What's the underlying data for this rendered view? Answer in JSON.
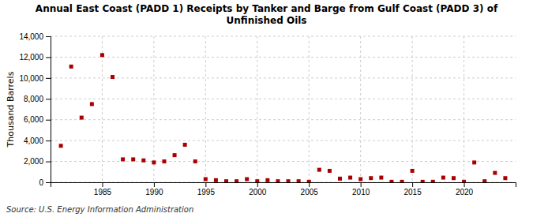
{
  "chart_data": {
    "type": "scatter",
    "title": "Annual East Coast (PADD 1) Receipts by Tanker and Barge from Gulf Coast (PADD 3) of\nUnfinished Oils",
    "ylabel": "Thousand Barrels",
    "source": "Source: U.S. Energy Information Administration",
    "color": "#aa0000",
    "marker": "square",
    "grid": true,
    "x": [
      1981,
      1982,
      1983,
      1984,
      1985,
      1986,
      1987,
      1988,
      1989,
      1990,
      1991,
      1992,
      1993,
      1994,
      1995,
      1996,
      1997,
      1998,
      1999,
      2000,
      2001,
      2002,
      2003,
      2004,
      2005,
      2006,
      2007,
      2008,
      2009,
      2010,
      2011,
      2012,
      2013,
      2014,
      2015,
      2016,
      2017,
      2018,
      2019,
      2020,
      2021,
      2022,
      2023,
      2024
    ],
    "values": [
      3500,
      11100,
      6200,
      7500,
      12200,
      10100,
      2200,
      2200,
      2100,
      1900,
      2000,
      2600,
      3600,
      2000,
      300,
      200,
      100,
      100,
      300,
      100,
      200,
      100,
      100,
      100,
      50,
      1200,
      1100,
      350,
      450,
      300,
      400,
      450,
      50,
      50,
      1100,
      50,
      50,
      450,
      400,
      50,
      1900,
      100,
      900,
      400
    ],
    "xlim": [
      1980,
      2025
    ],
    "xticks": [
      1985,
      1990,
      1995,
      2000,
      2005,
      2010,
      2015,
      2020
    ],
    "ylim": [
      0,
      14000
    ],
    "yticks": [
      0,
      {
        "value": 2000,
        "label": "2,000"
      },
      {
        "value": 4000,
        "label": "4,000"
      },
      {
        "value": 6000,
        "label": "6,000"
      },
      {
        "value": 8000,
        "label": "8,000"
      },
      {
        "value": 10000,
        "label": "10,000"
      },
      {
        "value": 12000,
        "label": "12,000"
      },
      {
        "value": 14000,
        "label": "14,000"
      }
    ]
  }
}
